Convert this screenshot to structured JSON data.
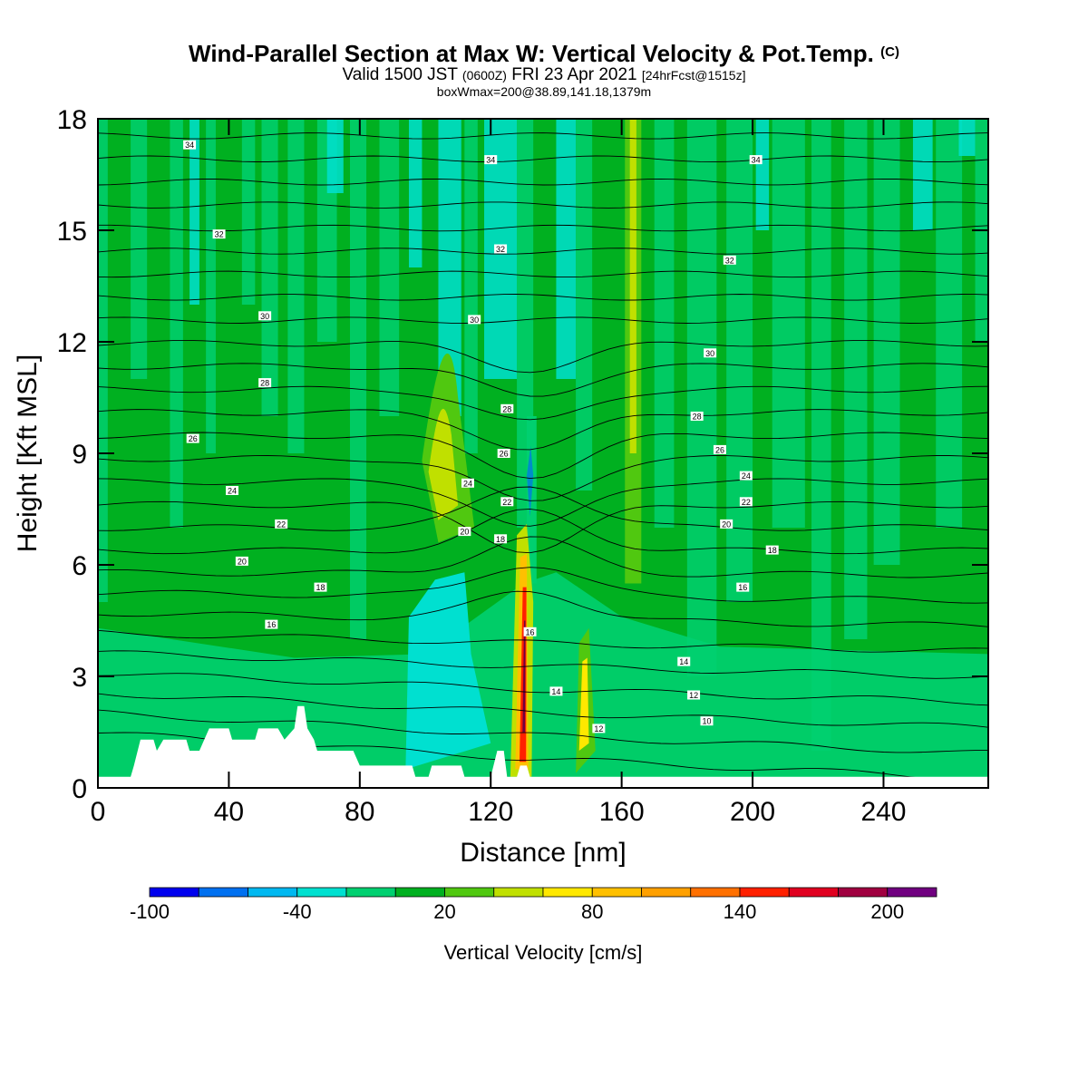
{
  "title": {
    "main": "Wind-Parallel Section at Max W: Vertical Velocity & Pot.Temp.",
    "copyright": "(C)",
    "valid_prefix": "Valid 1500 JST",
    "valid_zulu": "(0600Z)",
    "valid_date": "FRI 23 Apr 2021",
    "forecast": "[24hrFcst@1515z]",
    "box": "boxWmax=200@38.89,141.18,1379m"
  },
  "chart_data": {
    "type": "heatmap",
    "xlabel": "Distance [nm]",
    "ylabel": "Height [Kft MSL]",
    "xlim": [
      0,
      272
    ],
    "ylim": [
      0,
      18
    ],
    "x_ticks": [
      0,
      40,
      80,
      120,
      160,
      200,
      240
    ],
    "y_ticks": [
      0,
      3,
      6,
      9,
      12,
      15,
      18
    ],
    "colorbar": {
      "label": "Vertical Velocity [cm/s]",
      "ticks": [
        -100,
        -40,
        20,
        80,
        140,
        200
      ],
      "levels": [
        -100,
        -80,
        -60,
        -40,
        -20,
        0,
        20,
        40,
        60,
        80,
        100,
        120,
        140,
        160,
        180,
        200,
        220
      ],
      "colors": [
        "#0000ee",
        "#0070f0",
        "#00b8f0",
        "#00e0d0",
        "#00d070",
        "#00b020",
        "#50c810",
        "#c0e000",
        "#ffe800",
        "#ffc000",
        "#ffa000",
        "#ff7000",
        "#ff2000",
        "#e00020",
        "#a00040",
        "#700080"
      ]
    },
    "theta_labels": [
      {
        "x": 28,
        "y": 17.3,
        "v": "34"
      },
      {
        "x": 120,
        "y": 16.9,
        "v": "34"
      },
      {
        "x": 201,
        "y": 16.9,
        "v": "34"
      },
      {
        "x": 37,
        "y": 14.9,
        "v": "32"
      },
      {
        "x": 123,
        "y": 14.5,
        "v": "32"
      },
      {
        "x": 193,
        "y": 14.2,
        "v": "32"
      },
      {
        "x": 51,
        "y": 12.7,
        "v": "30"
      },
      {
        "x": 115,
        "y": 12.6,
        "v": "30"
      },
      {
        "x": 187,
        "y": 11.7,
        "v": "30"
      },
      {
        "x": 51,
        "y": 10.9,
        "v": "28"
      },
      {
        "x": 125,
        "y": 10.2,
        "v": "28"
      },
      {
        "x": 183,
        "y": 10.0,
        "v": "28"
      },
      {
        "x": 29,
        "y": 9.4,
        "v": "26"
      },
      {
        "x": 124,
        "y": 9.0,
        "v": "26"
      },
      {
        "x": 190,
        "y": 9.1,
        "v": "26"
      },
      {
        "x": 41,
        "y": 8.0,
        "v": "24"
      },
      {
        "x": 113,
        "y": 8.2,
        "v": "24"
      },
      {
        "x": 198,
        "y": 8.4,
        "v": "24"
      },
      {
        "x": 125,
        "y": 7.7,
        "v": "22"
      },
      {
        "x": 56,
        "y": 7.1,
        "v": "22"
      },
      {
        "x": 198,
        "y": 7.7,
        "v": "22"
      },
      {
        "x": 112,
        "y": 6.9,
        "v": "20"
      },
      {
        "x": 44,
        "y": 6.1,
        "v": "20"
      },
      {
        "x": 192,
        "y": 7.1,
        "v": "20"
      },
      {
        "x": 123,
        "y": 6.7,
        "v": "18"
      },
      {
        "x": 68,
        "y": 5.4,
        "v": "18"
      },
      {
        "x": 206,
        "y": 6.4,
        "v": "18"
      },
      {
        "x": 53,
        "y": 4.4,
        "v": "16"
      },
      {
        "x": 197,
        "y": 5.4,
        "v": "16"
      },
      {
        "x": 132,
        "y": 4.2,
        "v": "16"
      },
      {
        "x": 179,
        "y": 3.4,
        "v": "14"
      },
      {
        "x": 140,
        "y": 2.6,
        "v": "14"
      },
      {
        "x": 182,
        "y": 2.5,
        "v": "12"
      },
      {
        "x": 153,
        "y": 1.6,
        "v": "12"
      },
      {
        "x": 186,
        "y": 1.8,
        "v": "10"
      }
    ]
  }
}
